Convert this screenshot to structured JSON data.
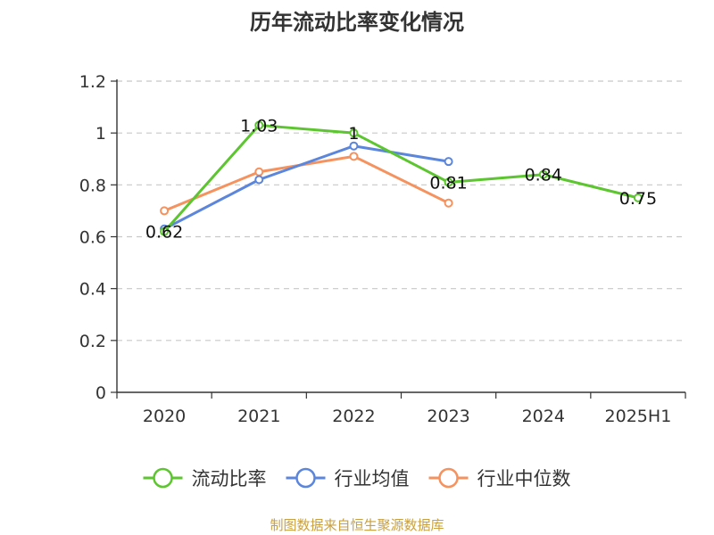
{
  "chart_data": {
    "type": "line",
    "title": "历年流动比率变化情况",
    "categories": [
      "2020",
      "2021",
      "2022",
      "2023",
      "2024",
      "2025H1"
    ],
    "ylim": [
      0,
      1.2
    ],
    "yticks": [
      "0",
      "0.2",
      "0.4",
      "0.6",
      "0.8",
      "1",
      "1.2"
    ],
    "grid": true,
    "legend_position": "bottom",
    "series": [
      {
        "name": "流动比率",
        "color": "#5cc52f",
        "values": [
          0.62,
          1.03,
          1.0,
          0.81,
          0.84,
          0.75
        ],
        "labels": [
          "0.62",
          "1.03",
          "1",
          "0.81",
          "0.84",
          "0.75"
        ]
      },
      {
        "name": "行业均值",
        "color": "#5b86dc",
        "values": [
          0.63,
          0.82,
          0.95,
          0.89,
          null,
          null
        ]
      },
      {
        "name": "行业中位数",
        "color": "#f5925e",
        "values": [
          0.7,
          0.85,
          0.91,
          0.73,
          null,
          null
        ]
      }
    ]
  },
  "source": "制图数据来自恒生聚源数据库"
}
